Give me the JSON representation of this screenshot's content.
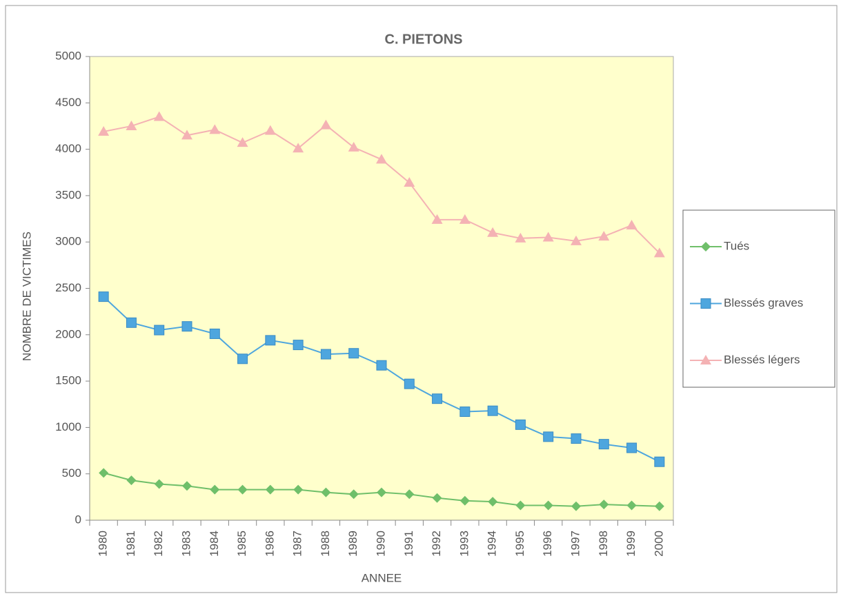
{
  "chart_data": {
    "type": "line",
    "title": "C. PIETONS",
    "x_label": "ANNEE",
    "y_label": "NOMBRE DE VICTIMES",
    "categories": [
      "1980",
      "1981",
      "1982",
      "1983",
      "1984",
      "1985",
      "1986",
      "1987",
      "1988",
      "1989",
      "1990",
      "1991",
      "1992",
      "1993",
      "1994",
      "1995",
      "1996",
      "1997",
      "1998",
      "1999",
      "2000"
    ],
    "series": [
      {
        "name": "Tués",
        "color": "#6fbf6a",
        "marker": "diamond",
        "values": [
          510,
          430,
          390,
          370,
          330,
          330,
          330,
          330,
          300,
          280,
          300,
          280,
          240,
          210,
          200,
          160,
          160,
          150,
          170,
          160,
          150
        ]
      },
      {
        "name": "Blessés graves",
        "color": "#4ea6de",
        "marker": "square",
        "values": [
          2410,
          2130,
          2050,
          2090,
          2010,
          1740,
          1940,
          1890,
          1790,
          1800,
          1670,
          1470,
          1310,
          1170,
          1180,
          1030,
          900,
          880,
          820,
          780,
          630
        ]
      },
      {
        "name": "Blessés légers",
        "color": "#f4b2b4",
        "marker": "triangle",
        "values": [
          4190,
          4250,
          4350,
          4150,
          4210,
          4070,
          4200,
          4010,
          4260,
          4020,
          3890,
          3640,
          3240,
          3240,
          3100,
          3040,
          3050,
          3010,
          3060,
          3180,
          2880
        ]
      }
    ],
    "ylim": [
      0,
      5000
    ],
    "yticks": [
      0,
      500,
      1000,
      1500,
      2000,
      2500,
      3000,
      3500,
      4000,
      4500,
      5000
    ],
    "grid": false,
    "legend": "right",
    "plot_background": "#ffffcc"
  }
}
